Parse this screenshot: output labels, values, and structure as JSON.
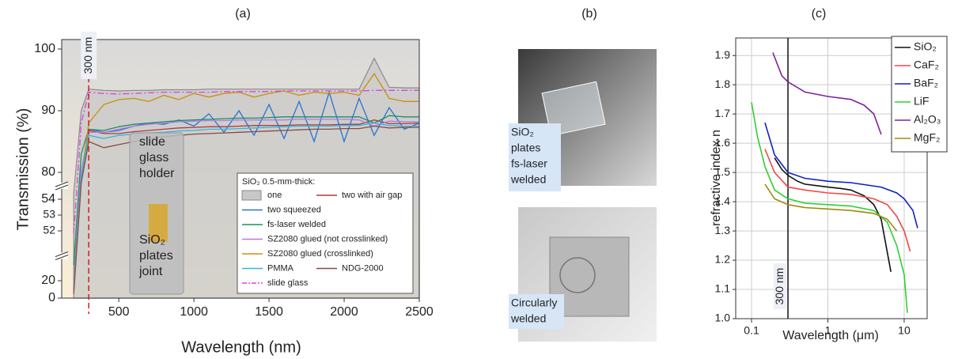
{
  "chart_data": [
    {
      "type": "line",
      "title": "(a)",
      "xlabel": "Wavelength (nm)",
      "ylabel": "Transmission (%)",
      "x": [
        200,
        250,
        300,
        400,
        500,
        600,
        700,
        800,
        900,
        1000,
        1100,
        1200,
        1300,
        1400,
        1500,
        1600,
        1700,
        1800,
        1900,
        2000,
        2100,
        2200,
        2300,
        2400,
        2500
      ],
      "xlim": [
        120,
        2500
      ],
      "xticks": [
        500,
        1000,
        1500,
        2000,
        2500
      ],
      "ylim": [
        0,
        100
      ],
      "y_segments": [
        [
          0,
          20
        ],
        [
          52,
          54
        ],
        [
          80,
          100
        ]
      ],
      "yticks": [
        0,
        20,
        52,
        53,
        54,
        80,
        90,
        100
      ],
      "legend_title": "SiO₂ 0.5-mm-thick:",
      "series": [
        {
          "name": "one",
          "color": "#8a8a8a",
          "style": "area",
          "values": [
            60,
            90,
            93.5,
            93.3,
            93.2,
            93.3,
            93.3,
            93.4,
            93.4,
            93.4,
            93.5,
            93.5,
            93.5,
            93.5,
            93.5,
            93.5,
            93.5,
            93.5,
            93.5,
            93.5,
            93.5,
            98.5,
            93.8,
            93.7,
            93.7
          ]
        },
        {
          "name": "two with air gap",
          "color": "#b03a3a",
          "values": [
            20,
            80,
            86.8,
            86.3,
            86.3,
            86.6,
            86.8,
            87,
            87.2,
            87.3,
            87.4,
            87.4,
            87.5,
            87.6,
            87.6,
            87.6,
            87.7,
            87.7,
            87.7,
            87.8,
            87.8,
            88.5,
            87.9,
            87.9,
            88
          ]
        },
        {
          "name": "two squeezed",
          "color": "#2a72d0",
          "values": [
            10,
            78,
            87,
            86.5,
            86.8,
            87.5,
            88,
            87.8,
            88.5,
            87.5,
            89.5,
            86.5,
            90,
            86,
            91,
            85.5,
            91.5,
            85,
            93,
            85,
            92,
            86,
            90.5,
            87,
            88
          ]
        },
        {
          "name": "fs-laser welded",
          "color": "#1a9060",
          "values": [
            30,
            83,
            87,
            86.8,
            87.4,
            87.8,
            88,
            88.2,
            88.4,
            88.5,
            88.6,
            88.7,
            88.8,
            88.8,
            88.9,
            89,
            89,
            89,
            89,
            89,
            89,
            88,
            89.2,
            89,
            89
          ]
        },
        {
          "name": "SZ2080 glued (not crosslinked)",
          "color": "#b878e8",
          "values": [
            20,
            80,
            86.5,
            86.5,
            87,
            87.5,
            87.8,
            88,
            88.2,
            88.3,
            88.4,
            88.4,
            88.5,
            88.5,
            88.5,
            88.5,
            88.6,
            88.6,
            88.6,
            88.6,
            88.5,
            87.5,
            88.3,
            88.2,
            88.2
          ]
        },
        {
          "name": "SZ2080 glued (crosslinked)",
          "color": "#c8900a",
          "values": [
            15,
            70,
            88,
            91,
            91.8,
            92,
            91.5,
            92.5,
            91.8,
            92.8,
            92.2,
            92.8,
            93,
            92.2,
            92.8,
            93.2,
            92.5,
            93,
            92.8,
            93,
            92.5,
            96,
            92,
            91.5,
            91.5
          ]
        },
        {
          "name": "PMMA",
          "color": "#30b8e0",
          "values": [
            12,
            75,
            86,
            85.5,
            86,
            86.2,
            86.4,
            86.5,
            86.7,
            86.8,
            87,
            87,
            87.1,
            87.2,
            87.3,
            87.4,
            87.5,
            87.5,
            87.5,
            87.6,
            87.6,
            88,
            87.6,
            87.5,
            87.5
          ]
        },
        {
          "name": "NDG-2000",
          "color": "#8b4a40",
          "values": [
            5,
            70,
            85,
            84,
            84.5,
            85,
            85.5,
            85.8,
            86,
            86.2,
            86.3,
            86.4,
            86.5,
            86.6,
            86.7,
            86.8,
            86.9,
            87,
            87,
            87.1,
            87.1,
            87.5,
            87.2,
            87.3,
            87.3
          ]
        },
        {
          "name": "slide glass",
          "color": "#e040e0",
          "style": "dashdot",
          "values": [
            50,
            88,
            93,
            92.8,
            92.7,
            92.8,
            92.9,
            93,
            93,
            93,
            93,
            93.1,
            93.1,
            93.1,
            93.1,
            93.2,
            93.2,
            93.2,
            93.2,
            93.2,
            93.2,
            93.3,
            93.3,
            93.3,
            93.3
          ]
        }
      ],
      "annotations": [
        {
          "x": 300,
          "text": "300 nm"
        }
      ],
      "inset_labels": [
        [
          "slide",
          "glass",
          "holder"
        ],
        [
          "SiO₂",
          "plates",
          "joint"
        ]
      ]
    },
    {
      "type": "line",
      "title": "(c)",
      "xlabel": "Wavelength (μm)",
      "ylabel": "refractive index n",
      "log_x": true,
      "grid": true,
      "legend": "upper right",
      "xlim": [
        0.062,
        20
      ],
      "xticks": [
        0.1,
        1,
        10
      ],
      "ylim": [
        1,
        1.96
      ],
      "yticks": [
        {
          "value": 1,
          "label": "1.0"
        },
        1.1,
        1.2,
        1.3,
        1.4,
        1.5,
        1.6,
        1.7,
        1.8,
        1.9
      ],
      "series": [
        {
          "name": "SiO₂",
          "color": "#111111",
          "x": [
            0.2,
            0.25,
            0.3,
            0.4,
            0.5,
            0.7,
            1,
            1.5,
            2,
            3,
            4,
            5,
            6.7
          ],
          "values": [
            1.55,
            1.51,
            1.49,
            1.47,
            1.46,
            1.455,
            1.45,
            1.445,
            1.44,
            1.42,
            1.39,
            1.34,
            1.16
          ]
        },
        {
          "name": "CaF₂",
          "color": "#f04848",
          "x": [
            0.15,
            0.2,
            0.3,
            0.5,
            1,
            2,
            4,
            6,
            8,
            10,
            12
          ],
          "values": [
            1.58,
            1.5,
            1.45,
            1.44,
            1.43,
            1.425,
            1.41,
            1.39,
            1.35,
            1.3,
            1.23
          ]
        },
        {
          "name": "BaF₂",
          "color": "#1020c0",
          "x": [
            0.15,
            0.2,
            0.3,
            0.5,
            1,
            2,
            5,
            8,
            10,
            13,
            15
          ],
          "values": [
            1.67,
            1.56,
            1.5,
            1.48,
            1.47,
            1.465,
            1.45,
            1.43,
            1.41,
            1.37,
            1.31
          ]
        },
        {
          "name": "LiF",
          "color": "#30d030",
          "x": [
            0.1,
            0.12,
            0.15,
            0.2,
            0.3,
            0.5,
            1,
            2,
            4,
            6,
            8,
            10,
            11
          ],
          "values": [
            1.74,
            1.62,
            1.52,
            1.44,
            1.41,
            1.395,
            1.39,
            1.385,
            1.37,
            1.33,
            1.25,
            1.15,
            1.02
          ]
        },
        {
          "name": "Al₂O₃",
          "color": "#8020a0",
          "x": [
            0.19,
            0.25,
            0.3,
            0.5,
            1,
            2,
            3,
            4,
            5
          ],
          "values": [
            1.91,
            1.83,
            1.81,
            1.775,
            1.76,
            1.75,
            1.73,
            1.7,
            1.63
          ]
        },
        {
          "name": "MgF₂",
          "color": "#a08810",
          "x": [
            0.15,
            0.2,
            0.3,
            0.5,
            1,
            2,
            4,
            6,
            8
          ],
          "values": [
            1.46,
            1.41,
            1.39,
            1.38,
            1.375,
            1.37,
            1.36,
            1.34,
            1.3
          ]
        }
      ],
      "annotations": [
        {
          "x": 0.3,
          "text": "300 nm"
        }
      ]
    }
  ],
  "photos": {
    "title": "(b)",
    "captions": [
      [
        "SiO₂",
        "plates",
        "fs-laser",
        "welded"
      ],
      [
        "Circularly",
        "welded"
      ]
    ]
  }
}
